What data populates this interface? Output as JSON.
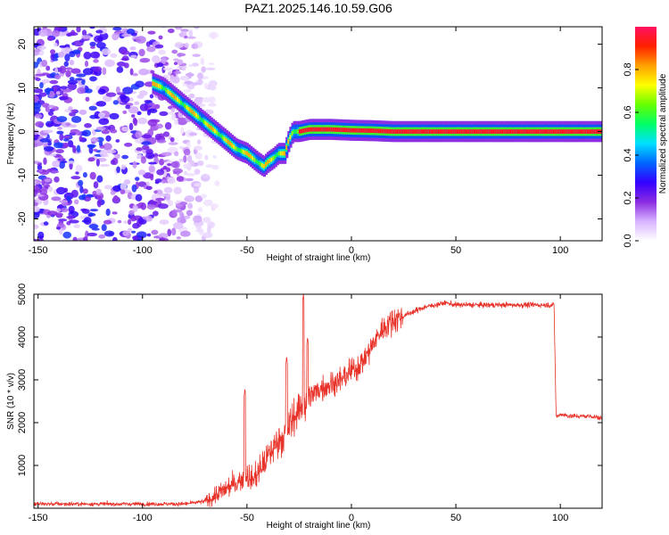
{
  "title": "PAZ1.2025.146.10.59.G06",
  "colors": {
    "snr_line": "#e8332a",
    "frame": "#000000",
    "background": "#ffffff"
  },
  "chart_data": [
    {
      "type": "heatmap",
      "xlabel": "Height of straight line (km)",
      "ylabel": "Frequency (Hz)",
      "xlim": [
        -152,
        120
      ],
      "ylim": [
        -25,
        24
      ],
      "x_ticks": [
        -150,
        -100,
        -50,
        0,
        50,
        100
      ],
      "y_ticks": [
        -20,
        -10,
        0,
        10,
        20
      ],
      "colorbar": {
        "label": "Normalized spectral amplitude",
        "range": [
          0,
          1
        ],
        "ticks": [
          "0.0",
          "0.2",
          "0.4",
          "0.6",
          "0.8"
        ],
        "colormap": [
          "#ffffff",
          "#d8b4ff",
          "#8a2be2",
          "#3300ff",
          "#0066ff",
          "#00e0ff",
          "#00ff66",
          "#66ff00",
          "#ffff00",
          "#ffa000",
          "#ff2000",
          "#ff1060"
        ]
      },
      "ridge": {
        "x": [
          -95,
          -90,
          -85,
          -80,
          -75,
          -70,
          -65,
          -60,
          -55,
          -50,
          -45,
          -42,
          -40,
          -37,
          -35,
          -32,
          -30,
          -28,
          -25,
          -20,
          -10,
          0,
          10,
          20,
          50,
          80,
          100,
          120
        ],
        "y": [
          11,
          10,
          8,
          6,
          4,
          2,
          0,
          -2,
          -4,
          -5,
          -7,
          -8,
          -7,
          -6,
          -5,
          -5,
          -2,
          0,
          0,
          0.5,
          0.5,
          0.3,
          0.2,
          0,
          0,
          0,
          0,
          0
        ]
      },
      "noise_region": {
        "x_range": [
          -152,
          -75
        ],
        "y_range": [
          -25,
          24
        ]
      }
    },
    {
      "type": "line",
      "xlabel": "Height of straight line (km)",
      "ylabel": "SNR (10 * v/v)",
      "xlim": [
        -152,
        120
      ],
      "ylim": [
        0,
        5000
      ],
      "x_ticks": [
        -150,
        -100,
        -50,
        0,
        50,
        100
      ],
      "y_ticks": [
        1000,
        2000,
        3000,
        4000,
        5000
      ],
      "series": [
        {
          "x": [
            -152,
            -80,
            -75,
            -70,
            -65,
            -60,
            -55,
            -52,
            -50,
            -48,
            -45,
            -40,
            -35,
            -32,
            -30,
            -28,
            -25,
            -23,
            -22,
            -20,
            -15,
            -10,
            -5,
            0,
            5,
            10,
            15,
            20,
            25,
            30,
            35,
            40,
            45,
            50,
            60,
            70,
            80,
            90,
            97,
            98,
            99,
            100,
            105,
            110,
            115,
            120
          ],
          "y": [
            100,
            100,
            130,
            160,
            300,
            450,
            600,
            700,
            800,
            650,
            800,
            1200,
            1600,
            1700,
            1900,
            2100,
            2300,
            2400,
            2400,
            2600,
            2800,
            2900,
            3000,
            3200,
            3400,
            3800,
            4200,
            4400,
            4500,
            4600,
            4700,
            4750,
            4800,
            4750,
            4750,
            4750,
            4750,
            4750,
            4750,
            2150,
            2150,
            2200,
            2150,
            2150,
            2150,
            2100
          ],
          "spikes": [
            {
              "x": -51,
              "y": 2800
            },
            {
              "x": -31,
              "y": 3550
            },
            {
              "x": -23,
              "y": 5000
            },
            {
              "x": -21,
              "y": 4000
            }
          ]
        }
      ]
    }
  ]
}
